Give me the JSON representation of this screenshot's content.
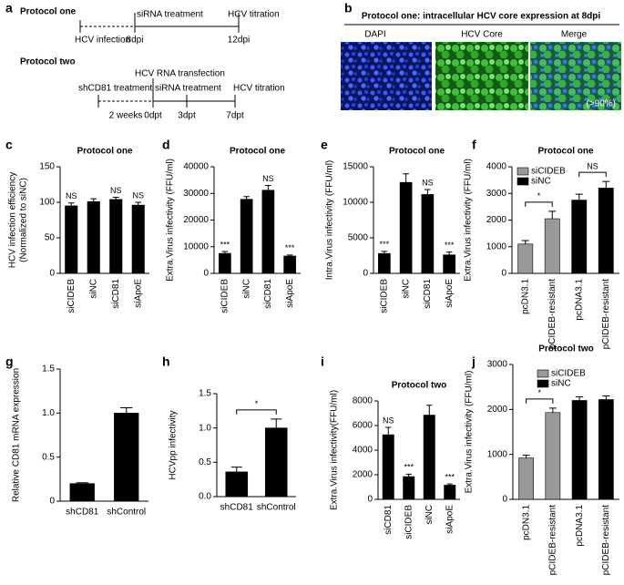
{
  "diagram": {
    "panel_label": "a",
    "protocol_one": {
      "title": "Protocol one",
      "steps": [
        "siRNA treatment",
        "HCV titration"
      ],
      "timepoints": [
        "HCV infection",
        "8dpi",
        "12dpi"
      ]
    },
    "protocol_two": {
      "title": "Protocol two",
      "steps": [
        "HCV RNA transfection",
        "shCD81 treatment",
        "siRNA treatment",
        "HCV titration"
      ],
      "timepoints": [
        "2 weeks",
        "0dpt",
        "3dpt",
        "7dpt"
      ]
    }
  },
  "micrograph": {
    "panel_label": "b",
    "title": "Protocol one: intracellular HCV core expression at 8dpi",
    "channels": [
      "DAPI",
      "HCV Core",
      "Merge"
    ],
    "annotation": "(>90%)"
  },
  "chart_data": [
    {
      "type": "bar",
      "panel_label": "c",
      "title": "Protocol one",
      "ylabel": [
        "HCV infection efficiency",
        "(Normalized to siNC)"
      ],
      "categories": [
        "siCIDEB",
        "siNC",
        "siCD81",
        "siApoE"
      ],
      "values": [
        95,
        101,
        104,
        96
      ],
      "error": [
        4,
        4,
        3,
        4
      ],
      "value_labels": [
        "NS",
        null,
        "NS",
        "NS"
      ],
      "color": "#000000",
      "ylim": [
        0,
        150
      ],
      "yticks": [
        0,
        50,
        100,
        150
      ]
    },
    {
      "type": "bar",
      "panel_label": "d",
      "title": "Protocol one",
      "ylabel": "Extra.Virus infectivity (FFU/ml)",
      "categories": [
        "siCIDEB",
        "siNC",
        "siCD81",
        "siApoE"
      ],
      "values": [
        7500,
        27800,
        31200,
        6500
      ],
      "error": [
        700,
        1000,
        1800,
        400
      ],
      "value_labels": [
        "***",
        null,
        "NS",
        "***"
      ],
      "color": "#000000",
      "ylim": [
        0,
        40000
      ],
      "yticks": [
        0,
        10000,
        20000,
        30000,
        40000
      ]
    },
    {
      "type": "bar",
      "panel_label": "e",
      "title": "Protocol one",
      "ylabel": "Intra.Virus infectivity (FFU/ml)",
      "categories": [
        "siCIDEB",
        "siNC",
        "siCD81",
        "siApoE"
      ],
      "values": [
        2800,
        12800,
        11100,
        2600
      ],
      "error": [
        300,
        1200,
        700,
        400
      ],
      "value_labels": [
        "***",
        null,
        "NS",
        "***"
      ],
      "color": "#000000",
      "ylim": [
        0,
        15000
      ],
      "yticks": [
        0,
        5000,
        10000,
        15000
      ]
    },
    {
      "type": "bar",
      "panel_label": "f",
      "title": "Protocol one",
      "ylabel": "Extra.Virus infectivity (FFU/ml)",
      "categories": [
        "pcDN3.1",
        "pCIDEB-resistant",
        "pcDNA3.1",
        "pCIDEB-resistant"
      ],
      "series": [
        {
          "name": "siCIDEB",
          "color": "#999999",
          "values": [
            1100,
            2050,
            null,
            null
          ],
          "error": [
            130,
            280,
            null,
            null
          ]
        },
        {
          "name": "siNC",
          "color": "#000000",
          "values": [
            null,
            null,
            2750,
            3200
          ],
          "error": [
            null,
            null,
            220,
            250
          ]
        }
      ],
      "annotations": [
        "*",
        "NS"
      ],
      "ylim": [
        0,
        4000
      ],
      "yticks": [
        0,
        1000,
        2000,
        3000,
        4000
      ]
    },
    {
      "type": "bar",
      "panel_label": "g",
      "ylabel": "Relative CD81 mRNA  expression",
      "categories": [
        "shCD81",
        "shControl"
      ],
      "values": [
        0.2,
        1.0
      ],
      "error": [
        0.01,
        0.06
      ],
      "color": "#000000",
      "ylim": [
        0,
        1.5
      ],
      "yticks": [
        0,
        0.5,
        {
          "value": 1,
          "label": "1.0"
        },
        1.5
      ]
    },
    {
      "type": "bar",
      "panel_label": "h",
      "ylabel": "HCVpp infectivity",
      "categories": [
        "shCD81",
        "shControl"
      ],
      "values": [
        0.36,
        1.0
      ],
      "error": [
        0.07,
        0.13
      ],
      "annotations": [
        "*"
      ],
      "color": "#000000",
      "ylim": [
        0,
        1.5
      ],
      "yticks": [
        {
          "value": 0,
          "label": "0.0"
        },
        0.5,
        {
          "value": 1,
          "label": "1.0"
        },
        1.5
      ]
    },
    {
      "type": "bar",
      "panel_label": "i",
      "title": "Protocol two",
      "ylabel": "Extra.Virus infectivity(FFU/ml)",
      "categories": [
        "siCD81",
        "siCIDEB",
        "siNC",
        "siApoE"
      ],
      "values": [
        5250,
        1850,
        6850,
        1150
      ],
      "error": [
        600,
        200,
        800,
        100
      ],
      "value_labels": [
        "NS",
        "***",
        null,
        "***"
      ],
      "color": "#000000",
      "ylim": [
        0,
        8000
      ],
      "yticks": [
        0,
        2000,
        4000,
        6000,
        8000
      ]
    },
    {
      "type": "bar",
      "panel_label": "j",
      "title": "Protocol two",
      "ylabel": "Extra.Virus infectivity (FFU/ml)",
      "categories": [
        "pcDN3.1",
        "pCIDEB-resistant",
        "pcDNA3.1",
        "pCIDEB-resistant"
      ],
      "series": [
        {
          "name": "siCIDEB",
          "color": "#999999",
          "values": [
            920,
            1930,
            null,
            null
          ],
          "error": [
            60,
            100,
            null,
            null
          ]
        },
        {
          "name": "siNC",
          "color": "#000000",
          "values": [
            null,
            null,
            2200,
            2220
          ],
          "error": [
            null,
            null,
            80,
            80
          ]
        }
      ],
      "annotations": [
        "*"
      ],
      "ylim": [
        0,
        3000
      ],
      "yticks": [
        0,
        1000,
        2000,
        3000
      ]
    }
  ]
}
